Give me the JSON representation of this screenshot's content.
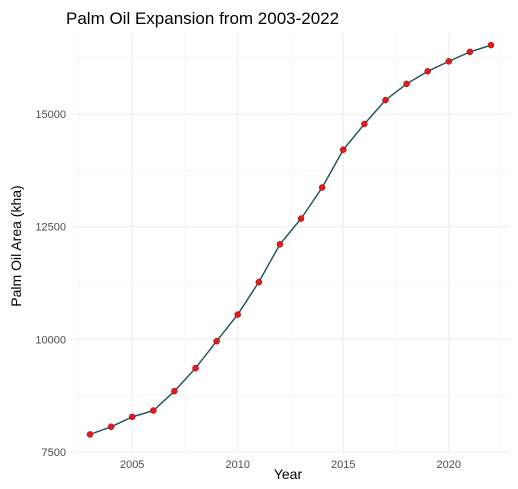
{
  "chart_data": {
    "type": "line",
    "title": "Palm Oil Expansion from 2003-2022",
    "xlabel": "Year",
    "ylabel": "Palm Oil Area (kha)",
    "x": [
      2003,
      2004,
      2005,
      2006,
      2007,
      2008,
      2009,
      2010,
      2011,
      2012,
      2013,
      2014,
      2015,
      2016,
      2017,
      2018,
      2019,
      2020,
      2021,
      2022
    ],
    "series": [
      {
        "values": [
          7890,
          8060,
          8280,
          8420,
          8850,
          9360,
          9960,
          10550,
          11270,
          12110,
          12680,
          13370,
          14210,
          14780,
          15310,
          15670,
          15950,
          16170,
          16380,
          16530
        ]
      }
    ],
    "xlim": [
      2002.1,
      2022.9
    ],
    "ylim": [
      7500,
      16800
    ],
    "xticks": [
      2005,
      2010,
      2015,
      2020
    ],
    "xtick_labels": [
      "2005",
      "2010",
      "2015",
      "2020"
    ],
    "yticks": [
      7500,
      10000,
      12500,
      15000
    ],
    "ytick_labels": [
      "7500",
      "10000",
      "12500",
      "15000"
    ],
    "grid": true,
    "colors": {
      "line": "#1b4f5c",
      "point": "#e31a1c",
      "grid": "#ebebeb"
    }
  }
}
